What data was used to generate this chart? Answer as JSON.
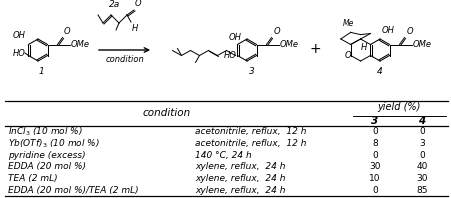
{
  "table_header_condition": "condition",
  "table_header_yield": "yield (%)",
  "table_header_3": "3",
  "table_header_4": "4",
  "rows": [
    {
      "reagent": "InCl$_3$ (10 mol %)",
      "solvent": "acetonitrile, reflux,  12 h",
      "yield3": "0",
      "yield4": "0"
    },
    {
      "reagent": "Yb(OTf)$_3$ (10 mol %)",
      "solvent": "acetonitrile, reflux,  12 h",
      "yield3": "8",
      "yield4": "3"
    },
    {
      "reagent": "pyridine (excess)",
      "solvent": "140 °C, 24 h",
      "yield3": "0",
      "yield4": "0"
    },
    {
      "reagent": "EDDA (20 mol %)",
      "solvent": "xylene, reflux,  24 h",
      "yield3": "30",
      "yield4": "40"
    },
    {
      "reagent": "TEA (2 mL)",
      "solvent": "xylene, reflux,  24 h",
      "yield3": "10",
      "yield4": "30"
    },
    {
      "reagent": "EDDA (20 mol %)/TEA (2 mL)",
      "solvent": "xylene, reflux,  24 h",
      "yield3": "0",
      "yield4": "85"
    }
  ],
  "bg_color": "#ffffff",
  "font_size": 6.5,
  "header_font_size": 7.5
}
